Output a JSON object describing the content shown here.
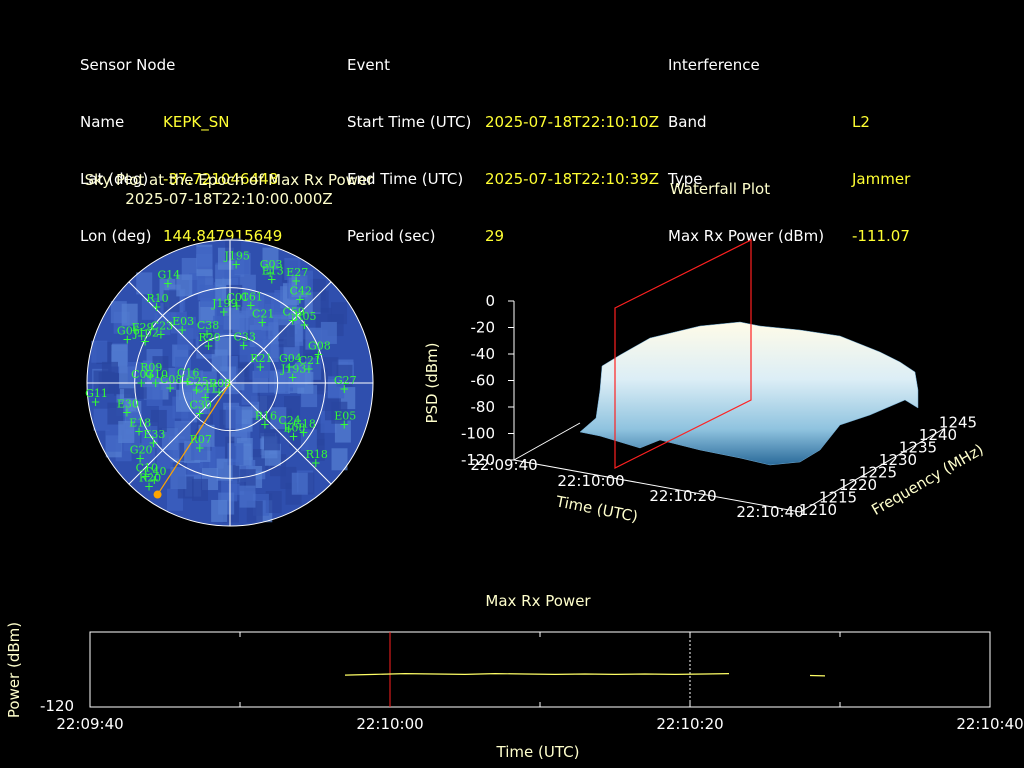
{
  "sensor": {
    "heading": "Sensor Node",
    "name_label": "Name",
    "name": "KEPK_SN",
    "lat_label": "Lat (deg)",
    "lat": "-37.721046448",
    "lon_label": "Lon (deg)",
    "lon": "144.847915649"
  },
  "event": {
    "heading": "Event",
    "start_label": "Start Time (UTC)",
    "start": "2025-07-18T22:10:10Z",
    "end_label": "End Time (UTC)",
    "end": "2025-07-18T22:10:39Z",
    "period_label": "Period (sec)",
    "period": "29"
  },
  "interference": {
    "heading": "Interference",
    "band_label": "Band",
    "band": "L2",
    "type_label": "Type",
    "type": "Jammer",
    "maxrx_label": "Max Rx Power (dBm)",
    "maxrx": "-111.07"
  },
  "chart_data": [
    {
      "type": "scatter",
      "subtype": "polar-sky-plot",
      "title": "Sky Plot at the Epoch of Max Rx Power",
      "subtitle": "2025-07-18T22:10:00.000Z",
      "interference_bearing_deg": 213,
      "satellites": [
        {
          "id": "J195",
          "az": 3,
          "el": 83
        },
        {
          "id": "G03",
          "az": 20,
          "el": 82
        },
        {
          "id": "E27",
          "az": 33,
          "el": 85
        },
        {
          "id": "E13",
          "az": 22,
          "el": 78
        },
        {
          "id": "G14",
          "az": 328,
          "el": 82
        },
        {
          "id": "C42",
          "az": 40,
          "el": 76
        },
        {
          "id": "R10",
          "az": 316,
          "el": 74
        },
        {
          "id": "C59",
          "az": 45,
          "el": 62
        },
        {
          "id": "R05",
          "az": 52,
          "el": 66
        },
        {
          "id": "C01",
          "az": 5,
          "el": 54
        },
        {
          "id": "C61",
          "az": 15,
          "el": 56
        },
        {
          "id": "C21",
          "az": 28,
          "el": 48
        },
        {
          "id": "J199",
          "az": 355,
          "el": 50
        },
        {
          "id": "C23",
          "az": 305,
          "el": 59
        },
        {
          "id": "E03",
          "az": 318,
          "el": 50
        },
        {
          "id": "G06",
          "az": 293,
          "el": 78
        },
        {
          "id": "E29",
          "az": 298,
          "el": 70
        },
        {
          "id": "J102",
          "az": 296,
          "el": 66
        },
        {
          "id": "G08",
          "az": 72,
          "el": 65
        },
        {
          "id": "C38",
          "az": 335,
          "el": 38
        },
        {
          "id": "C33",
          "az": 20,
          "el": 28
        },
        {
          "id": "C21b",
          "az": 80,
          "el": 56
        },
        {
          "id": "G04",
          "az": 75,
          "el": 43
        },
        {
          "id": "J193",
          "az": 85,
          "el": 44
        },
        {
          "id": "R21",
          "az": 62,
          "el": 24
        },
        {
          "id": "C07",
          "az": 270,
          "el": 62
        },
        {
          "id": "R09",
          "az": 275,
          "el": 56
        },
        {
          "id": "G10",
          "az": 270,
          "el": 52
        },
        {
          "id": "C08",
          "az": 265,
          "el": 42
        },
        {
          "id": "C16",
          "az": 272,
          "el": 30
        },
        {
          "id": "C25",
          "az": 258,
          "el": 24
        },
        {
          "id": "R08",
          "az": 230,
          "el": 10
        },
        {
          "id": "G27",
          "az": 93,
          "el": 80
        },
        {
          "id": "G11",
          "az": 262,
          "el": 95
        },
        {
          "id": "E30",
          "az": 254,
          "el": 75
        },
        {
          "id": "E18",
          "az": 242,
          "el": 72
        },
        {
          "id": "E33",
          "az": 232,
          "el": 68
        },
        {
          "id": "G20",
          "az": 230,
          "el": 82
        },
        {
          "id": "R07",
          "az": 205,
          "el": 50
        },
        {
          "id": "C40",
          "az": 218,
          "el": 86
        },
        {
          "id": "C10",
          "az": 222,
          "el": 88
        },
        {
          "id": "R20",
          "az": 218,
          "el": 92
        },
        {
          "id": "R16",
          "az": 140,
          "el": 38
        },
        {
          "id": "C24",
          "az": 128,
          "el": 52
        },
        {
          "id": "E08",
          "az": 130,
          "el": 58
        },
        {
          "id": "G18",
          "az": 124,
          "el": 62
        },
        {
          "id": "E05",
          "az": 110,
          "el": 85
        },
        {
          "id": "R18",
          "az": 133,
          "el": 82
        },
        {
          "id": "R20b",
          "az": 330,
          "el": 30
        },
        {
          "id": "C41",
          "az": 240,
          "el": 20
        },
        {
          "id": "C30",
          "az": 225,
          "el": 30
        }
      ]
    },
    {
      "type": "area",
      "subtype": "3d-waterfall",
      "title": "Waterfall Plot",
      "xlabel": "Time (UTC)",
      "ylabel": "Frequency (MHz)",
      "zlabel": "PSD (dBm)",
      "time_ticks": [
        "22:09:40",
        "22:10:00",
        "22:10:20",
        "22:10:40"
      ],
      "freq_ticks": [
        "1210",
        "1215",
        "1220",
        "1225",
        "1230",
        "1235",
        "1240",
        "1245"
      ],
      "psd_ticks": [
        "0",
        "-20",
        "-40",
        "-60",
        "-80",
        "-100",
        "-120"
      ],
      "zlim": [
        -120,
        0
      ],
      "marker_time": "22:10:00"
    },
    {
      "type": "line",
      "title": "Max Rx Power",
      "xlabel": "Time (UTC)",
      "ylabel": "Power (dBm)",
      "y_tick": "-120",
      "x_ticks": [
        "22:09:40",
        "22:10:00",
        "22:10:20",
        "22:10:40"
      ],
      "x_seconds": [
        0,
        60
      ],
      "max_marker_sec": 20,
      "end_marker_sec": 40,
      "series": [
        {
          "color": "#ffff66",
          "points": [
            [
              17,
              -111.5
            ],
            [
              19,
              -111.3
            ],
            [
              21,
              -111.1
            ],
            [
              23,
              -111.2
            ],
            [
              25,
              -111.3
            ],
            [
              27,
              -111.1
            ],
            [
              29,
              -111.2
            ],
            [
              31,
              -111.3
            ],
            [
              33,
              -111.2
            ],
            [
              35,
              -111.3
            ],
            [
              37,
              -111.2
            ],
            [
              39,
              -111.3
            ],
            [
              41,
              -111.2
            ],
            [
              42.6,
              -111.1
            ]
          ]
        },
        {
          "color": "#ffff66",
          "points": [
            [
              48,
              -111.6
            ],
            [
              49,
              -111.7
            ]
          ]
        }
      ]
    }
  ]
}
